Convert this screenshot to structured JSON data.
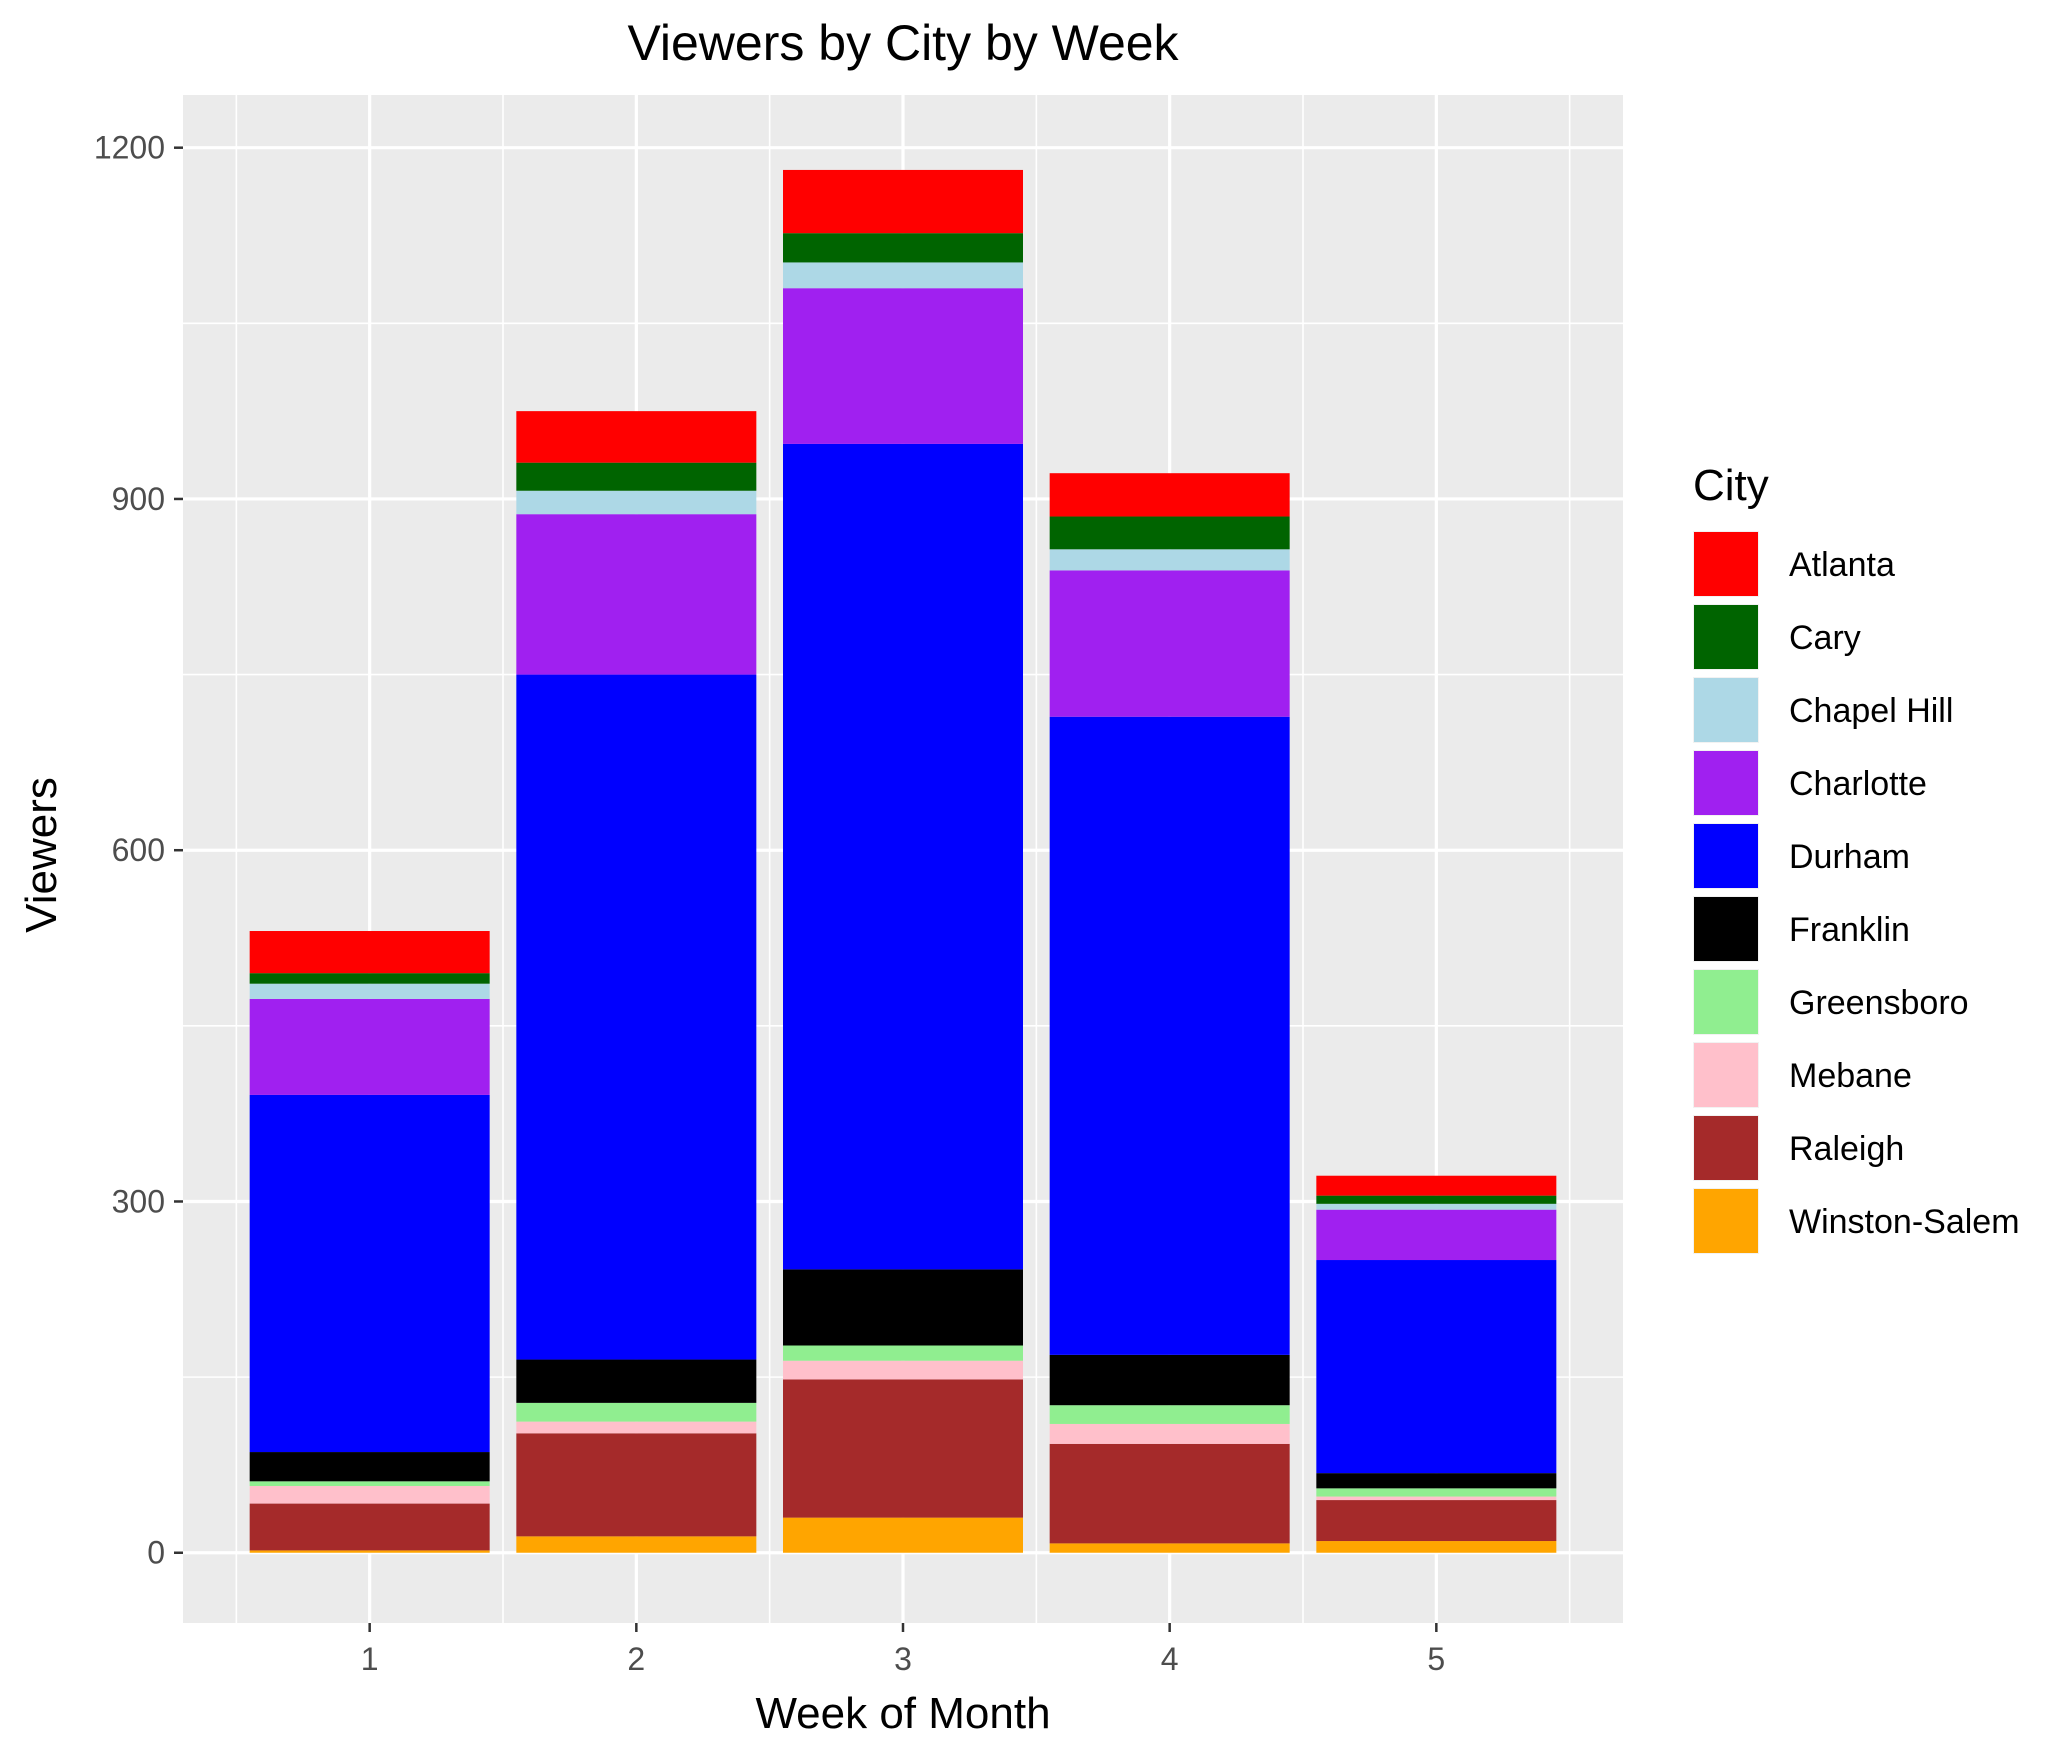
{
  "chart_data": {
    "type": "bar",
    "stacked": true,
    "title": "Viewers by City by Week",
    "xlabel": "Week of Month",
    "ylabel": "Viewers",
    "categories": [
      "1",
      "2",
      "3",
      "4",
      "5"
    ],
    "ylim": [
      -60,
      1245
    ],
    "yticks": [
      "0",
      "300",
      "600",
      "900",
      "1200"
    ],
    "grid": true,
    "legend_title": "City",
    "legend_position": "right",
    "series": [
      {
        "name": "Winston-Salem",
        "color": "#FFA500",
        "values": [
          2,
          14,
          30,
          8,
          10
        ]
      },
      {
        "name": "Raleigh",
        "color": "#A52A2A",
        "values": [
          40,
          88,
          118,
          85,
          35
        ]
      },
      {
        "name": "Mebane",
        "color": "#FFC0CB",
        "values": [
          15,
          10,
          16,
          17,
          3
        ]
      },
      {
        "name": "Greensboro",
        "color": "#90EE90",
        "values": [
          4,
          16,
          13,
          16,
          7
        ]
      },
      {
        "name": "Franklin",
        "color": "#000000",
        "values": [
          25,
          37,
          65,
          43,
          13
        ]
      },
      {
        "name": "Durham",
        "color": "#0000FF",
        "values": [
          305,
          585,
          705,
          545,
          182
        ]
      },
      {
        "name": "Charlotte",
        "color": "#A020F0",
        "values": [
          82,
          137,
          133,
          125,
          43
        ]
      },
      {
        "name": "Chapel Hill",
        "color": "#ADD8E6",
        "values": [
          13,
          20,
          22,
          18,
          5
        ]
      },
      {
        "name": "Cary",
        "color": "#006400",
        "values": [
          9,
          24,
          25,
          28,
          7
        ]
      },
      {
        "name": "Atlanta",
        "color": "#FF0000",
        "values": [
          36,
          44,
          54,
          37,
          17
        ]
      }
    ],
    "legend_order": [
      "Atlanta",
      "Cary",
      "Chapel Hill",
      "Charlotte",
      "Durham",
      "Franklin",
      "Greensboro",
      "Mebane",
      "Raleigh",
      "Winston-Salem"
    ]
  }
}
